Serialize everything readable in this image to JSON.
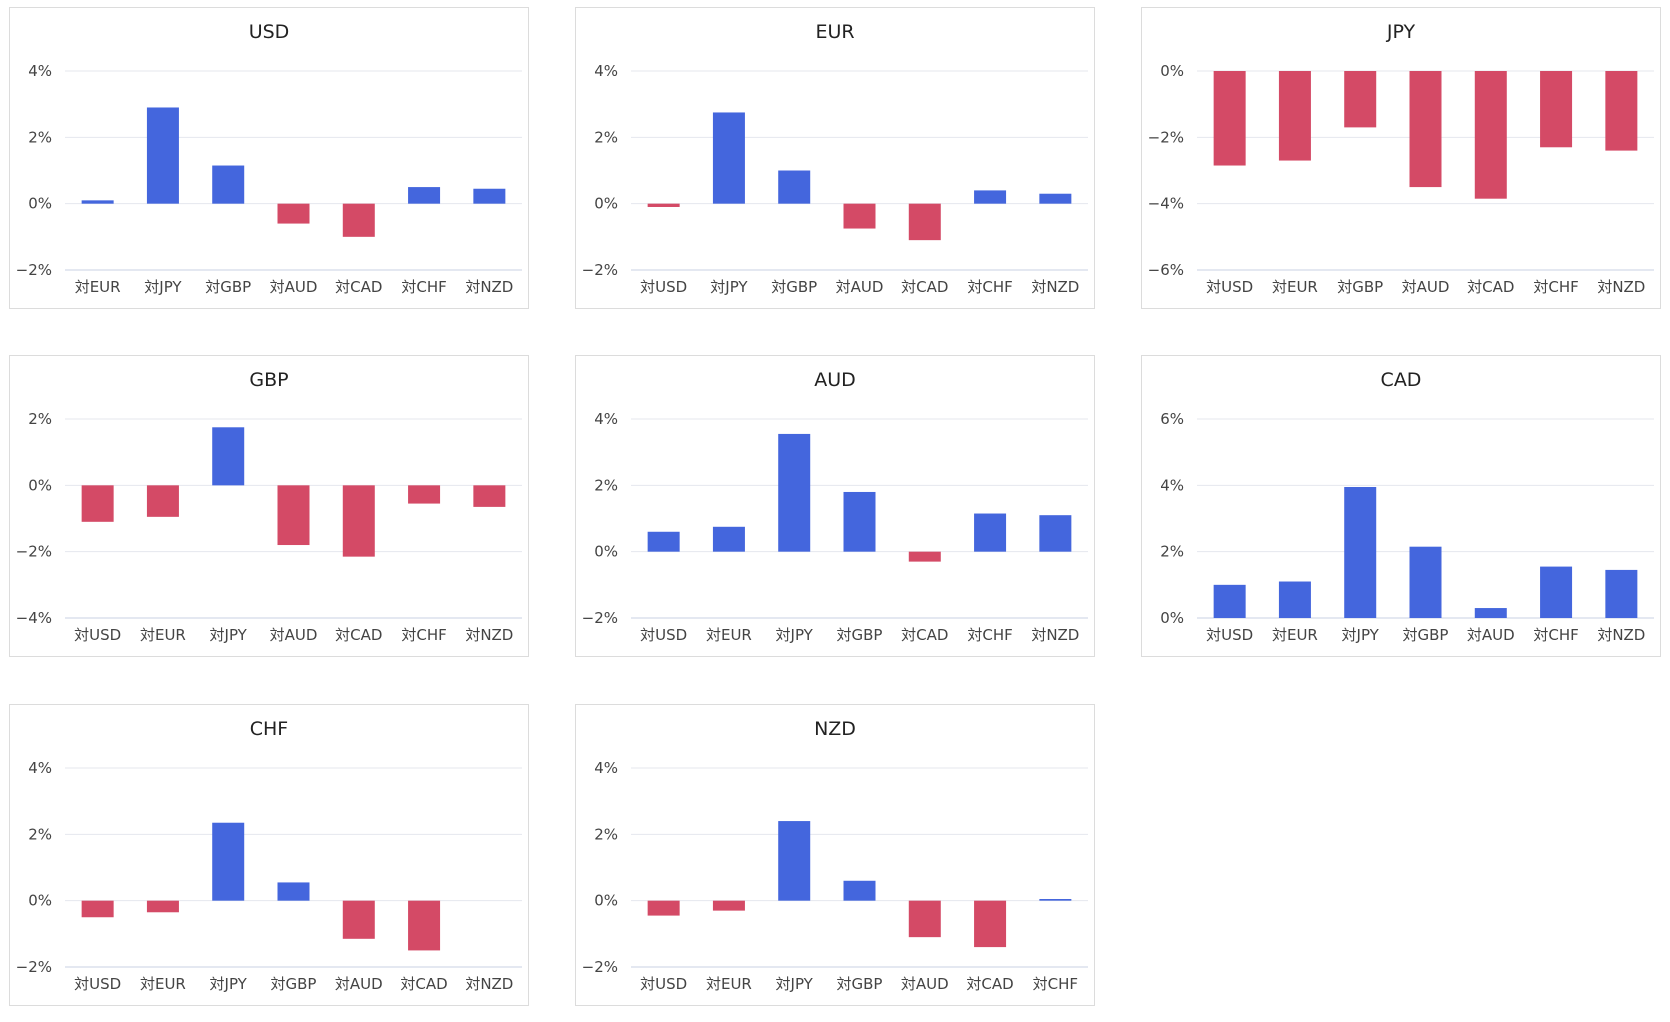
{
  "colors": {
    "positive": "#4466dd",
    "negative": "#d44a66",
    "grid": "#e4e7ee",
    "tick_text": "#444444"
  },
  "chart_data": [
    {
      "type": "bar",
      "title": "USD",
      "ticks": [
        "4%",
        "2%",
        "0%",
        "−2%"
      ],
      "ylim": [
        -2,
        4
      ],
      "categories": [
        "対EUR",
        "対JPY",
        "対GBP",
        "対AUD",
        "対CAD",
        "対CHF",
        "対NZD"
      ],
      "values": [
        0.1,
        2.9,
        1.15,
        -0.6,
        -1.0,
        0.5,
        0.45
      ]
    },
    {
      "type": "bar",
      "title": "EUR",
      "ticks": [
        "4%",
        "2%",
        "0%",
        "−2%"
      ],
      "ylim": [
        -2,
        4
      ],
      "categories": [
        "対USD",
        "対JPY",
        "対GBP",
        "対AUD",
        "対CAD",
        "対CHF",
        "対NZD"
      ],
      "values": [
        -0.1,
        2.75,
        1.0,
        -0.75,
        -1.1,
        0.4,
        0.3
      ]
    },
    {
      "type": "bar",
      "title": "JPY",
      "ticks": [
        "0%",
        "−2%",
        "−4%",
        "−6%"
      ],
      "ylim": [
        -6,
        0
      ],
      "categories": [
        "対USD",
        "対EUR",
        "対GBP",
        "対AUD",
        "対CAD",
        "対CHF",
        "対NZD"
      ],
      "values": [
        -2.85,
        -2.7,
        -1.7,
        -3.5,
        -3.85,
        -2.3,
        -2.4
      ]
    },
    {
      "type": "bar",
      "title": "GBP",
      "ticks": [
        "2%",
        "0%",
        "−2%",
        "−4%"
      ],
      "ylim": [
        -4,
        2
      ],
      "categories": [
        "対USD",
        "対EUR",
        "対JPY",
        "対AUD",
        "対CAD",
        "対CHF",
        "対NZD"
      ],
      "values": [
        -1.1,
        -0.95,
        1.75,
        -1.8,
        -2.15,
        -0.55,
        -0.65
      ]
    },
    {
      "type": "bar",
      "title": "AUD",
      "ticks": [
        "4%",
        "2%",
        "0%",
        "−2%"
      ],
      "ylim": [
        -2,
        4
      ],
      "categories": [
        "対USD",
        "対EUR",
        "対JPY",
        "対GBP",
        "対CAD",
        "対CHF",
        "対NZD"
      ],
      "values": [
        0.6,
        0.75,
        3.55,
        1.8,
        -0.3,
        1.15,
        1.1
      ]
    },
    {
      "type": "bar",
      "title": "CAD",
      "ticks": [
        "6%",
        "4%",
        "2%",
        "0%"
      ],
      "ylim": [
        0,
        6
      ],
      "categories": [
        "対USD",
        "対EUR",
        "対JPY",
        "対GBP",
        "対AUD",
        "対CHF",
        "対NZD"
      ],
      "values": [
        1.0,
        1.1,
        3.95,
        2.15,
        0.3,
        1.55,
        1.45
      ]
    },
    {
      "type": "bar",
      "title": "CHF",
      "ticks": [
        "4%",
        "2%",
        "0%",
        "−2%"
      ],
      "ylim": [
        -2,
        4
      ],
      "categories": [
        "対USD",
        "対EUR",
        "対JPY",
        "対GBP",
        "対AUD",
        "対CAD",
        "対NZD"
      ],
      "values": [
        -0.5,
        -0.35,
        2.35,
        0.55,
        -1.15,
        -1.5,
        0
      ]
    },
    {
      "type": "bar",
      "title": "NZD",
      "ticks": [
        "4%",
        "2%",
        "0%",
        "−2%"
      ],
      "ylim": [
        -2,
        4
      ],
      "categories": [
        "対USD",
        "対EUR",
        "対JPY",
        "対GBP",
        "対AUD",
        "対CAD",
        "対CHF"
      ],
      "values": [
        -0.45,
        -0.3,
        2.4,
        0.6,
        -1.1,
        -1.4,
        0.05
      ]
    }
  ]
}
